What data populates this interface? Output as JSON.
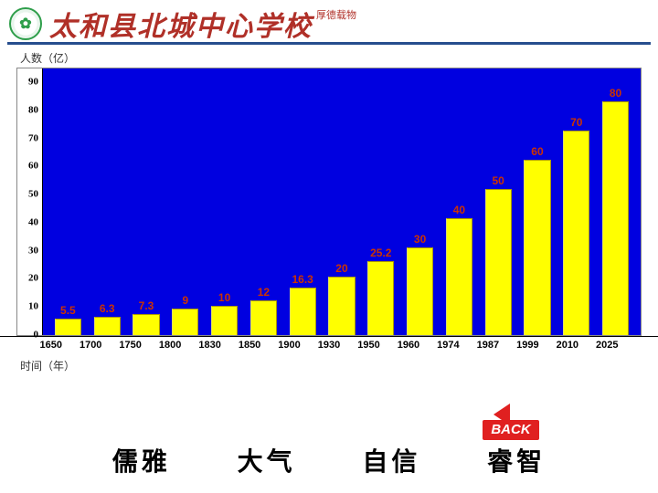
{
  "header": {
    "school_name": "太和县北城中心学校",
    "motto_small": "厚德载物"
  },
  "chart": {
    "type": "bar",
    "y_label": "人数（亿）",
    "x_label": "时间（年）",
    "y_max": 90,
    "y_ticks": [
      "0",
      "10",
      "20",
      "30",
      "40",
      "50",
      "60",
      "70",
      "80",
      "90"
    ],
    "categories": [
      "1650",
      "1700",
      "1750",
      "1800",
      "1830",
      "1850",
      "1900",
      "1930",
      "1950",
      "1960",
      "1974",
      "1987",
      "1999",
      "2010",
      "2025"
    ],
    "values": [
      5.5,
      6.3,
      7.3,
      9,
      10,
      12,
      16.3,
      20,
      25.2,
      30,
      40,
      50,
      60,
      70,
      80
    ],
    "value_labels": [
      "5.5",
      "6.3",
      "7.3",
      "9",
      "10",
      "12",
      "16.3",
      "20",
      "25.2",
      "30",
      "40",
      "50",
      "60",
      "70",
      "80"
    ],
    "bar_color": "#ffff00",
    "plot_bg": "#0000e0",
    "label_color": "#cc3300"
  },
  "back": {
    "label": "BACK"
  },
  "footer": {
    "w1": "儒雅",
    "w2": "大气",
    "w3": "自信",
    "w4": "睿智"
  }
}
